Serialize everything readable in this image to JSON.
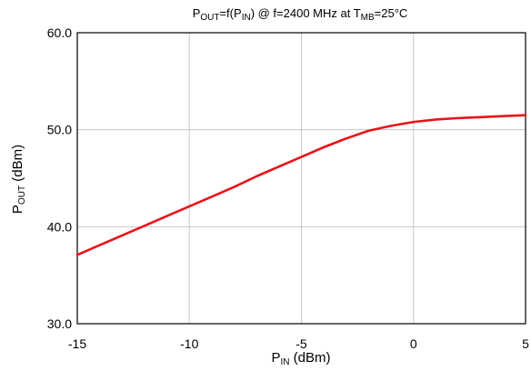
{
  "chart_data": {
    "type": "line",
    "title": {
      "p": "P",
      "out_sub": "OUT",
      "eq": "=f(P",
      "in_sub": "IN",
      "mid": ") @ f=2400 MHz at T",
      "mb_sub": "MB",
      "end": "=25°C"
    },
    "xlabel": {
      "p": "P",
      "sub": "IN",
      "rest": " (dBm)"
    },
    "ylabel": {
      "p": "P",
      "sub": "OUT",
      "rest": " (dBm)"
    },
    "xlim": [
      -15,
      5
    ],
    "ylim": [
      30,
      60
    ],
    "x_ticks": [
      "-15",
      "-10",
      "-5",
      "0",
      "5"
    ],
    "y_ticks": [
      "30.0",
      "40.0",
      "50.0",
      "60.0"
    ],
    "grid": true,
    "series": [
      {
        "color": "#e8141a",
        "x": [
          -15,
          -14,
          -13,
          -12,
          -11,
          -10,
          -9,
          -8,
          -7,
          -6,
          -5,
          -4,
          -3,
          -2,
          -1,
          0,
          1,
          2,
          3,
          4,
          5
        ],
        "y": [
          37.1,
          38.1,
          39.1,
          40.1,
          41.1,
          42.1,
          43.1,
          44.1,
          45.2,
          46.2,
          47.2,
          48.2,
          49.1,
          49.9,
          50.4,
          50.8,
          51.05,
          51.2,
          51.3,
          51.4,
          51.5
        ]
      }
    ]
  }
}
